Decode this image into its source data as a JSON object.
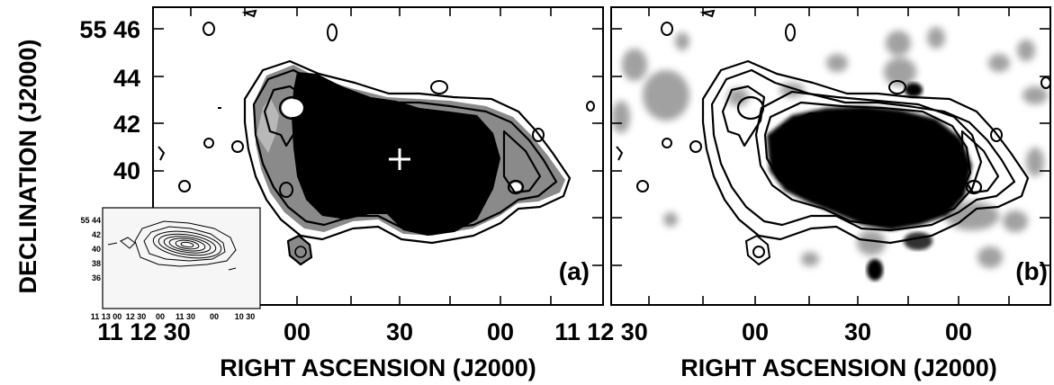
{
  "y_axis_title": "DECLINATION (J2000)",
  "x_axis_title": "RIGHT ASCENSION (J2000)",
  "dec_ticks": [
    "55 46",
    "44",
    "42",
    "40"
  ],
  "ra_ticks_left": [
    "11 12 30",
    "00",
    "30",
    "00",
    "11 12 30"
  ],
  "ra_ticks_right": [
    "00",
    "30",
    "00"
  ],
  "panels": [
    {
      "label": "(a)"
    },
    {
      "label": "(b)"
    }
  ],
  "inset": {
    "dec_ticks": [
      "55 44",
      "42",
      "40",
      "38",
      "36"
    ],
    "ra_ticks": [
      "11 13 00",
      "12 30",
      "00",
      "11 30",
      "00",
      "10 30"
    ]
  },
  "colors": {
    "ink": "#000000",
    "halo": "#8c8c8c",
    "marker": "#ffffff"
  }
}
